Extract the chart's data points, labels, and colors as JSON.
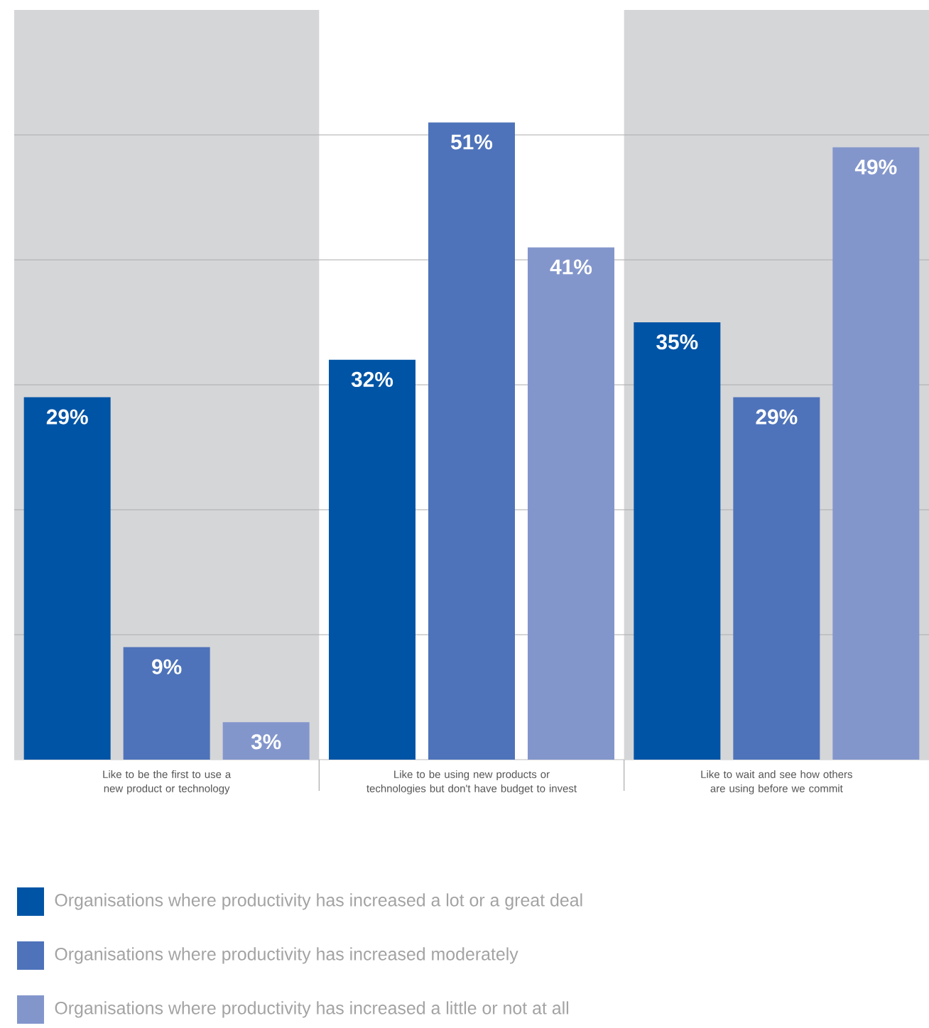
{
  "chart_data": {
    "type": "bar",
    "categories": [
      "Like to be the first to use a new product or technology",
      "Like to be using new products or technologies but don't have budget to invest",
      "Like to wait and see how others are using before we commit"
    ],
    "series": [
      {
        "name": "Organisations where productivity has increased a lot or a great deal",
        "color": "#0054a6",
        "values": [
          29,
          32,
          35
        ],
        "value_labels": [
          "29%",
          "32%",
          "35%"
        ]
      },
      {
        "name": "Organisations where productivity has increased moderately",
        "color": "#4e73ba",
        "values": [
          9,
          51,
          29
        ],
        "value_labels": [
          "9%",
          "51%",
          "29%"
        ]
      },
      {
        "name": "Organisations where productivity has increased a little or not at all",
        "color": "#8396cc",
        "values": [
          3,
          41,
          49
        ],
        "value_labels": [
          "3%",
          "41%",
          "49%"
        ]
      }
    ],
    "ylim": [
      0,
      60
    ],
    "yticks": [
      {
        "value": 10,
        "label": null
      },
      {
        "value": 20,
        "label": null
      },
      {
        "value": 30,
        "label": null
      },
      {
        "value": 40,
        "label": null
      },
      {
        "value": 50,
        "label": null
      }
    ],
    "tick_labels": "x",
    "grid": "y",
    "legend": "bottom"
  }
}
